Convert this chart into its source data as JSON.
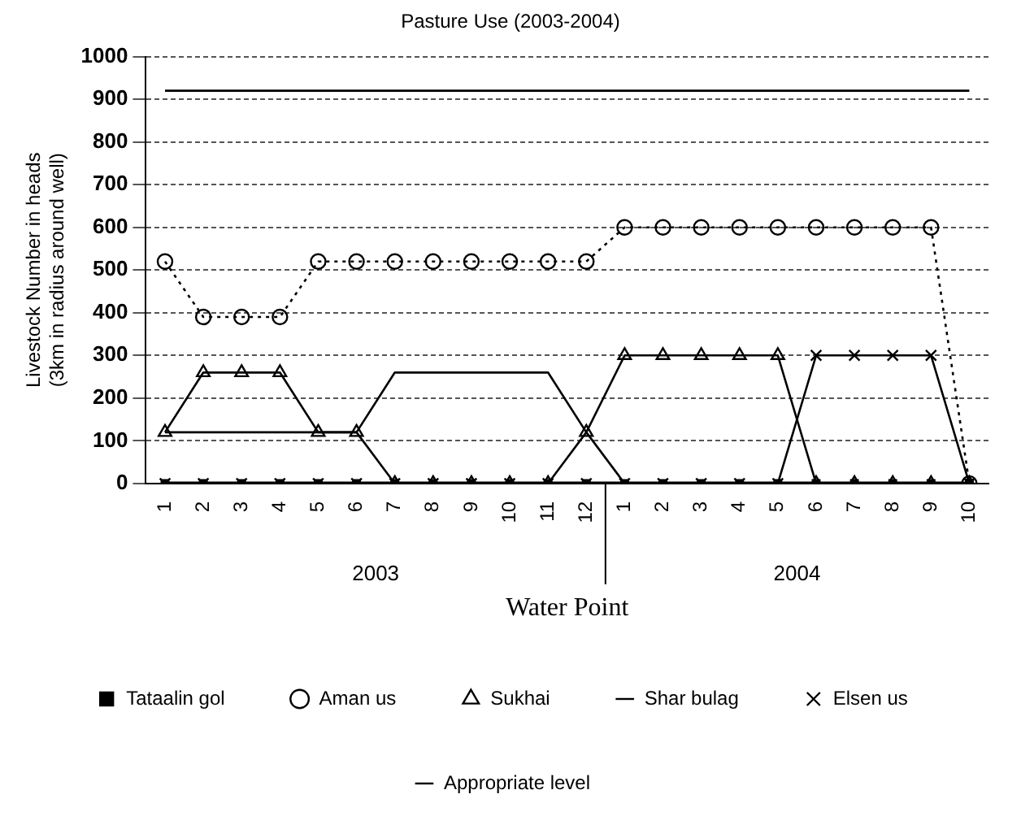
{
  "chart_data": {
    "type": "line",
    "title": "Pasture Use (2003-2004)",
    "xlabel": "Water Point",
    "ylabel": "Livestock Number in heads\n(3km in radius around well)",
    "categories": [
      "1",
      "2",
      "3",
      "4",
      "5",
      "6",
      "7",
      "8",
      "9",
      "10",
      "11",
      "12",
      "1",
      "2",
      "3",
      "4",
      "5",
      "6",
      "7",
      "8",
      "9",
      "10"
    ],
    "series": [
      {
        "name": "Tataalin gol",
        "color": "#000000",
        "marker": "square",
        "line_style": "solid",
        "values": [
          0,
          0,
          0,
          0,
          0,
          0,
          0,
          0,
          0,
          0,
          0,
          0,
          0,
          0,
          0,
          0,
          0,
          0,
          0,
          0,
          0,
          0
        ]
      },
      {
        "name": "Aman us",
        "color": "#000000",
        "marker": "circle",
        "line_style": "dotted",
        "values": [
          520,
          390,
          390,
          390,
          520,
          520,
          520,
          520,
          520,
          520,
          520,
          520,
          600,
          600,
          600,
          600,
          600,
          600,
          600,
          600,
          600,
          0
        ]
      },
      {
        "name": "Sukhai",
        "color": "#000000",
        "marker": "triangle",
        "line_style": "solid",
        "values": [
          120,
          260,
          260,
          260,
          120,
          120,
          0,
          0,
          0,
          0,
          0,
          120,
          300,
          300,
          300,
          300,
          300,
          0,
          0,
          0,
          0,
          0
        ]
      },
      {
        "name": "Shar bulag",
        "color": "#000000",
        "marker": "none",
        "line_style": "solid",
        "values": [
          120,
          120,
          120,
          120,
          120,
          120,
          260,
          260,
          260,
          260,
          260,
          120,
          0,
          0,
          0,
          0,
          0,
          0,
          0,
          0,
          0,
          0
        ]
      },
      {
        "name": "Elsen us",
        "color": "#000000",
        "marker": "cross",
        "line_style": "solid",
        "values": [
          0,
          0,
          0,
          0,
          0,
          0,
          0,
          0,
          0,
          0,
          0,
          0,
          0,
          0,
          0,
          0,
          0,
          300,
          300,
          300,
          300,
          0
        ]
      },
      {
        "name": "Appropriate level",
        "color": "#000000",
        "marker": "none",
        "line_style": "solid",
        "values": [
          920,
          920,
          920,
          920,
          920,
          920,
          920,
          920,
          920,
          920,
          920,
          920,
          920,
          920,
          920,
          920,
          920,
          920,
          920,
          920,
          920,
          920
        ]
      }
    ],
    "annotations": [
      "2003",
      "2004"
    ],
    "ylim": [
      0,
      1000
    ],
    "yticks": [
      0,
      100,
      200,
      300,
      400,
      500,
      600,
      700,
      800,
      900,
      1000
    ],
    "grid": "y",
    "legend": "bottom"
  }
}
